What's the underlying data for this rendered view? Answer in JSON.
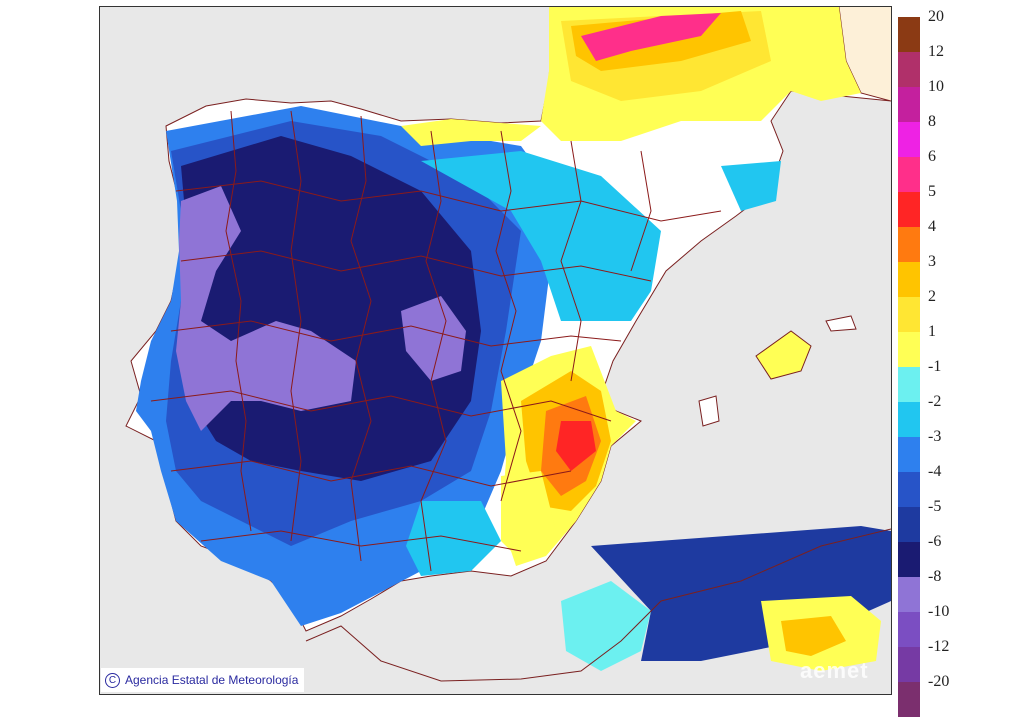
{
  "credit": {
    "text": "Agencia Estatal de Meteorología",
    "copyright_symbol": "C"
  },
  "watermark": {
    "text": "aemet"
  },
  "legend": {
    "positive": [
      {
        "label": "20",
        "color": "#8b3a14"
      },
      {
        "label": "12",
        "color": "#b0306a"
      },
      {
        "label": "10",
        "color": "#c4209e"
      },
      {
        "label": "8",
        "color": "#ee22e4"
      },
      {
        "label": "6",
        "color": "#ff2f8a"
      },
      {
        "label": "5",
        "color": "#ff2525"
      },
      {
        "label": "4",
        "color": "#ff7a10"
      },
      {
        "label": "3",
        "color": "#ffc400"
      },
      {
        "label": "2",
        "color": "#ffe633"
      },
      {
        "label": "1",
        "color": "#ffff55"
      }
    ],
    "negative": [
      {
        "label": "-1",
        "color": "#6cf0f0"
      },
      {
        "label": "-2",
        "color": "#21c6f0"
      },
      {
        "label": "-3",
        "color": "#2e80ee"
      },
      {
        "label": "-4",
        "color": "#2754c8"
      },
      {
        "label": "-5",
        "color": "#1e3aa0"
      },
      {
        "label": "-6",
        "color": "#1a1b72"
      },
      {
        "label": "-8",
        "color": "#8f74d6"
      },
      {
        "label": "-10",
        "color": "#7b4ec2"
      },
      {
        "label": "-12",
        "color": "#763aa4"
      },
      {
        "label": "-20",
        "color": "#7b2f6e"
      }
    ]
  },
  "map": {
    "sea_color": "#e8e8e8",
    "land_background": "#ffffff",
    "border_color": "#8b1a1a",
    "france_color": "#fdf0d8"
  }
}
